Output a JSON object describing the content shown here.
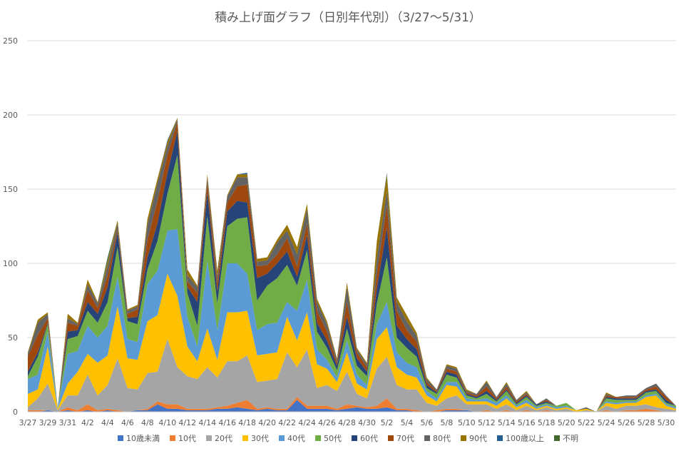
{
  "chart_data": {
    "type": "area",
    "stacked": true,
    "title": "積み上げ面グラフ（日別年代別）（3/27〜5/31）",
    "xlabel": "",
    "ylabel": "",
    "ylim": [
      0,
      250
    ],
    "y_ticks": [
      "0",
      "50",
      "100",
      "150",
      "200",
      "250"
    ],
    "grid": true,
    "legend_position": "bottom",
    "x_tick_labels": [
      "3/27",
      "3/29",
      "3/31",
      "4/2",
      "4/4",
      "4/6",
      "4/8",
      "4/10",
      "4/12",
      "4/14",
      "4/16",
      "4/18",
      "4/20",
      "4/22",
      "4/24",
      "4/26",
      "4/28",
      "4/30",
      "5/2",
      "5/4",
      "5/6",
      "5/8",
      "5/10",
      "5/12",
      "5/14",
      "5/16",
      "5/18",
      "5/20",
      "5/22",
      "5/24",
      "5/26",
      "5/28",
      "5/30"
    ],
    "categories": [
      "3/27",
      "3/28",
      "3/29",
      "3/30",
      "3/31",
      "4/1",
      "4/2",
      "4/3",
      "4/4",
      "4/5",
      "4/6",
      "4/7",
      "4/8",
      "4/9",
      "4/10",
      "4/11",
      "4/12",
      "4/13",
      "4/14",
      "4/15",
      "4/16",
      "4/17",
      "4/18",
      "4/19",
      "4/20",
      "4/21",
      "4/22",
      "4/23",
      "4/24",
      "4/25",
      "4/26",
      "4/27",
      "4/28",
      "4/29",
      "4/30",
      "5/1",
      "5/2",
      "5/3",
      "5/4",
      "5/5",
      "5/6",
      "5/7",
      "5/8",
      "5/9",
      "5/10",
      "5/11",
      "5/12",
      "5/13",
      "5/14",
      "5/15",
      "5/16",
      "5/17",
      "5/18",
      "5/19",
      "5/20",
      "5/21",
      "5/22",
      "5/23",
      "5/24",
      "5/25",
      "5/26",
      "5/27",
      "5/28",
      "5/29",
      "5/30",
      "5/31"
    ],
    "series": [
      {
        "name": "10歳未満",
        "color": "#4472C4",
        "values": [
          0,
          0,
          1,
          0,
          1,
          0,
          1,
          0,
          1,
          0,
          0,
          1,
          1,
          5,
          2,
          2,
          1,
          1,
          1,
          2,
          2,
          3,
          2,
          1,
          2,
          1,
          1,
          8,
          2,
          2,
          2,
          1,
          2,
          3,
          2,
          2,
          3,
          1,
          1,
          0,
          0,
          0,
          1,
          1,
          1,
          0,
          0,
          0,
          0,
          0,
          0,
          0,
          0,
          0,
          0,
          0,
          0,
          0,
          0,
          0,
          0,
          0,
          0,
          0,
          0,
          0
        ]
      },
      {
        "name": "10代",
        "color": "#ED7D31",
        "values": [
          1,
          1,
          0,
          0,
          2,
          1,
          4,
          1,
          1,
          1,
          0,
          0,
          1,
          2,
          3,
          3,
          1,
          1,
          1,
          1,
          2,
          3,
          6,
          1,
          1,
          1,
          1,
          2,
          2,
          2,
          2,
          1,
          3,
          1,
          1,
          2,
          6,
          1,
          1,
          1,
          0,
          1,
          1,
          1,
          0,
          0,
          1,
          0,
          1,
          0,
          1,
          0,
          1,
          0,
          0,
          0,
          0,
          0,
          1,
          0,
          1,
          1,
          2,
          1,
          0,
          0
        ]
      },
      {
        "name": "20代",
        "color": "#A5A5A5",
        "values": [
          2,
          8,
          18,
          1,
          8,
          10,
          20,
          10,
          16,
          35,
          16,
          14,
          24,
          20,
          44,
          25,
          22,
          20,
          28,
          20,
          30,
          28,
          30,
          18,
          18,
          20,
          38,
          20,
          38,
          12,
          14,
          12,
          22,
          8,
          6,
          25,
          28,
          16,
          13,
          14,
          6,
          3,
          7,
          9,
          4,
          5,
          4,
          2,
          4,
          1,
          3,
          1,
          2,
          1,
          2,
          0,
          1,
          0,
          3,
          2,
          3,
          3,
          3,
          2,
          2,
          1
        ]
      },
      {
        "name": "30代",
        "color": "#FFC000",
        "values": [
          9,
          6,
          25,
          1,
          8,
          16,
          14,
          22,
          20,
          35,
          20,
          20,
          35,
          38,
          44,
          48,
          20,
          12,
          26,
          12,
          33,
          33,
          30,
          18,
          18,
          18,
          24,
          18,
          25,
          16,
          11,
          6,
          13,
          7,
          6,
          20,
          20,
          12,
          10,
          8,
          5,
          3,
          9,
          6,
          2,
          2,
          2,
          2,
          4,
          2,
          2,
          1,
          1,
          1,
          1,
          1,
          1,
          0,
          2,
          3,
          2,
          2,
          5,
          8,
          2,
          1
        ]
      },
      {
        "name": "40代",
        "color": "#5B9BD5",
        "values": [
          10,
          10,
          10,
          1,
          20,
          14,
          19,
          17,
          20,
          20,
          13,
          12,
          25,
          30,
          29,
          45,
          20,
          10,
          46,
          20,
          33,
          33,
          25,
          17,
          20,
          20,
          10,
          20,
          22,
          10,
          6,
          3,
          8,
          6,
          3,
          10,
          17,
          10,
          8,
          7,
          3,
          2,
          2,
          3,
          2,
          1,
          2,
          2,
          2,
          1,
          2,
          1,
          1,
          1,
          1,
          0,
          0,
          0,
          1,
          1,
          1,
          1,
          1,
          1,
          1,
          1
        ]
      },
      {
        "name": "50代",
        "color": "#70AD47",
        "values": [
          2,
          12,
          5,
          0,
          10,
          10,
          10,
          10,
          16,
          20,
          12,
          12,
          10,
          20,
          25,
          50,
          16,
          14,
          30,
          18,
          25,
          30,
          38,
          20,
          26,
          30,
          25,
          17,
          20,
          12,
          8,
          5,
          8,
          6,
          6,
          14,
          30,
          10,
          10,
          7,
          2,
          3,
          5,
          3,
          2,
          1,
          3,
          1,
          3,
          1,
          2,
          1,
          1,
          1,
          2,
          0,
          0,
          0,
          2,
          2,
          1,
          1,
          2,
          2,
          1,
          1
        ]
      },
      {
        "name": "60代",
        "color": "#264478",
        "values": [
          3,
          3,
          1,
          0,
          5,
          4,
          6,
          6,
          10,
          10,
          2,
          5,
          8,
          12,
          14,
          16,
          4,
          16,
          16,
          8,
          10,
          12,
          10,
          15,
          8,
          10,
          9,
          6,
          10,
          6,
          5,
          3,
          8,
          5,
          3,
          10,
          20,
          8,
          6,
          5,
          2,
          1,
          2,
          2,
          1,
          1,
          2,
          1,
          1,
          1,
          1,
          1,
          1,
          0,
          0,
          0,
          0,
          0,
          1,
          1,
          1,
          1,
          1,
          1,
          2,
          0
        ]
      },
      {
        "name": "70代",
        "color": "#9E480E",
        "values": [
          10,
          12,
          3,
          0,
          6,
          3,
          8,
          4,
          8,
          2,
          3,
          5,
          12,
          15,
          12,
          6,
          4,
          6,
          6,
          6,
          6,
          10,
          12,
          8,
          6,
          6,
          9,
          7,
          8,
          8,
          6,
          2,
          10,
          4,
          3,
          10,
          15,
          10,
          6,
          5,
          2,
          1,
          2,
          2,
          1,
          1,
          3,
          1,
          2,
          1,
          1,
          0,
          1,
          0,
          0,
          0,
          0,
          0,
          1,
          1,
          1,
          1,
          1,
          2,
          2,
          0
        ]
      },
      {
        "name": "80代",
        "color": "#636363",
        "values": [
          2,
          8,
          3,
          0,
          3,
          1,
          4,
          3,
          6,
          4,
          2,
          2,
          10,
          12,
          6,
          2,
          4,
          4,
          4,
          4,
          4,
          6,
          5,
          3,
          3,
          8,
          5,
          8,
          10,
          6,
          5,
          2,
          10,
          2,
          2,
          10,
          10,
          6,
          6,
          4,
          2,
          1,
          2,
          2,
          1,
          1,
          3,
          1,
          2,
          1,
          1,
          0,
          1,
          0,
          0,
          0,
          1,
          0,
          1,
          0,
          1,
          1,
          1,
          2,
          1,
          0
        ]
      },
      {
        "name": "90代",
        "color": "#997300",
        "values": [
          1,
          2,
          1,
          0,
          3,
          1,
          3,
          1,
          3,
          2,
          1,
          1,
          4,
          3,
          3,
          1,
          4,
          1,
          2,
          4,
          1,
          2,
          2,
          2,
          2,
          2,
          4,
          5,
          3,
          2,
          2,
          1,
          3,
          1,
          1,
          12,
          10,
          3,
          4,
          2,
          1,
          0,
          1,
          1,
          1,
          0,
          1,
          0,
          1,
          0,
          1,
          0,
          0,
          0,
          0,
          0,
          0,
          0,
          1,
          0,
          0,
          0,
          0,
          0,
          0,
          0
        ]
      },
      {
        "name": "100歳以上",
        "color": "#255E91",
        "values": [
          0,
          0,
          0,
          0,
          0,
          0,
          0,
          0,
          1,
          0,
          0,
          0,
          0,
          0,
          1,
          0,
          0,
          0,
          0,
          0,
          0,
          0,
          1,
          0,
          0,
          0,
          0,
          0,
          0,
          0,
          0,
          0,
          0,
          0,
          0,
          0,
          1,
          0,
          0,
          0,
          0,
          0,
          0,
          0,
          0,
          0,
          0,
          0,
          0,
          0,
          0,
          0,
          0,
          0,
          0,
          0,
          0,
          0,
          0,
          0,
          0,
          0,
          0,
          0,
          0,
          0
        ]
      },
      {
        "name": "不明",
        "color": "#43682B",
        "values": [
          0,
          0,
          0,
          0,
          0,
          0,
          0,
          0,
          2,
          0,
          0,
          0,
          0,
          0,
          0,
          0,
          0,
          0,
          0,
          0,
          0,
          0,
          0,
          0,
          0,
          0,
          0,
          0,
          0,
          0,
          0,
          0,
          0,
          0,
          0,
          0,
          1,
          0,
          0,
          0,
          0,
          0,
          0,
          0,
          0,
          0,
          0,
          0,
          0,
          0,
          0,
          0,
          0,
          0,
          0,
          0,
          0,
          0,
          0,
          0,
          0,
          0,
          0,
          0,
          0,
          0
        ]
      }
    ]
  }
}
